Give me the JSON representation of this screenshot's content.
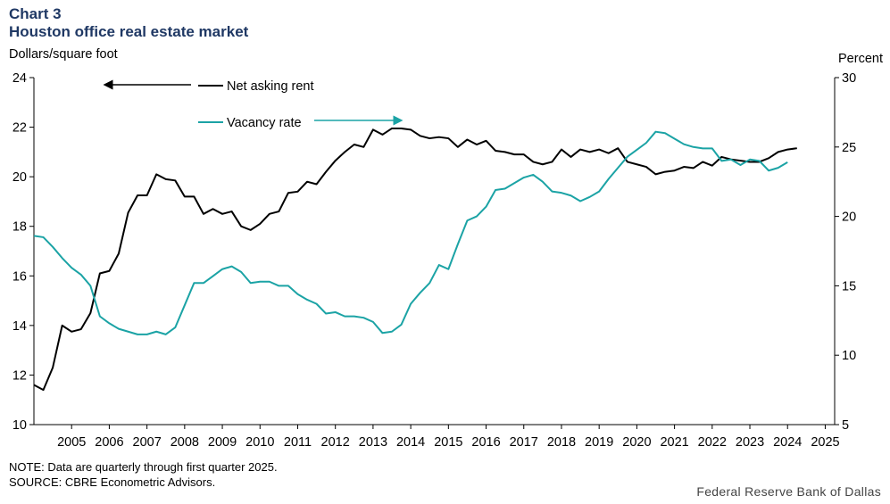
{
  "header": {
    "chart_number": "Chart 3",
    "title": "Houston office real estate market",
    "left_unit": "Dollars/square foot",
    "right_unit": "Percent"
  },
  "footer": {
    "note": "NOTE: Data are quarterly through first quarter 2025.",
    "source": "SOURCE: CBRE Econometric Advisors.",
    "credit": "Federal Reserve Bank of Dallas"
  },
  "colors": {
    "rent": "#000000",
    "vacancy": "#1ba3a5",
    "axis": "#000000"
  },
  "chart_data": {
    "type": "line",
    "title": "Houston office real estate market",
    "x_label_years": [
      "2005",
      "2006",
      "2007",
      "2008",
      "2009",
      "2010",
      "2011",
      "2012",
      "2013",
      "2014",
      "2015",
      "2016",
      "2017",
      "2018",
      "2019",
      "2020",
      "2021",
      "2022",
      "2023",
      "2024",
      "2025"
    ],
    "x_start": 2004.0,
    "x_end": 2025.25,
    "y_left": {
      "label": "Dollars/square foot",
      "range": [
        10,
        24
      ],
      "ticks": [
        "10",
        "12",
        "14",
        "16",
        "18",
        "20",
        "22",
        "24"
      ]
    },
    "y_right": {
      "label": "Percent",
      "range": [
        5,
        30
      ],
      "ticks": [
        "5",
        "10",
        "15",
        "20",
        "25",
        "30"
      ]
    },
    "legend": [
      {
        "name": "Net asking rent",
        "axis": "left",
        "arrow": "left"
      },
      {
        "name": "Vacancy rate",
        "axis": "right",
        "arrow": "right"
      }
    ],
    "series": [
      {
        "name": "Net asking rent",
        "axis": "left",
        "color": "#000000",
        "points": [
          [
            2004.0,
            11.6
          ],
          [
            2004.25,
            11.4
          ],
          [
            2004.5,
            12.3
          ],
          [
            2004.75,
            14.0
          ],
          [
            2005.0,
            13.75
          ],
          [
            2005.25,
            13.85
          ],
          [
            2005.5,
            14.5
          ],
          [
            2005.75,
            16.1
          ],
          [
            2006.0,
            16.2
          ],
          [
            2006.25,
            16.9
          ],
          [
            2006.5,
            18.55
          ],
          [
            2006.75,
            19.25
          ],
          [
            2007.0,
            19.25
          ],
          [
            2007.25,
            20.1
          ],
          [
            2007.5,
            19.9
          ],
          [
            2007.75,
            19.85
          ],
          [
            2008.0,
            19.2
          ],
          [
            2008.25,
            19.2
          ],
          [
            2008.5,
            18.5
          ],
          [
            2008.75,
            18.7
          ],
          [
            2009.0,
            18.5
          ],
          [
            2009.25,
            18.6
          ],
          [
            2009.5,
            18.0
          ],
          [
            2009.75,
            17.85
          ],
          [
            2010.0,
            18.1
          ],
          [
            2010.25,
            18.5
          ],
          [
            2010.5,
            18.6
          ],
          [
            2010.75,
            19.35
          ],
          [
            2011.0,
            19.4
          ],
          [
            2011.25,
            19.8
          ],
          [
            2011.5,
            19.7
          ],
          [
            2011.75,
            20.2
          ],
          [
            2012.0,
            20.65
          ],
          [
            2012.25,
            21.0
          ],
          [
            2012.5,
            21.3
          ],
          [
            2012.75,
            21.2
          ],
          [
            2013.0,
            21.9
          ],
          [
            2013.25,
            21.7
          ],
          [
            2013.5,
            21.95
          ],
          [
            2013.75,
            21.95
          ],
          [
            2014.0,
            21.9
          ],
          [
            2014.25,
            21.65
          ],
          [
            2014.5,
            21.55
          ],
          [
            2014.75,
            21.6
          ],
          [
            2015.0,
            21.55
          ],
          [
            2015.25,
            21.2
          ],
          [
            2015.5,
            21.5
          ],
          [
            2015.75,
            21.3
          ],
          [
            2016.0,
            21.45
          ],
          [
            2016.25,
            21.05
          ],
          [
            2016.5,
            21.0
          ],
          [
            2016.75,
            20.9
          ],
          [
            2017.0,
            20.9
          ],
          [
            2017.25,
            20.6
          ],
          [
            2017.5,
            20.5
          ],
          [
            2017.75,
            20.6
          ],
          [
            2018.0,
            21.1
          ],
          [
            2018.25,
            20.8
          ],
          [
            2018.5,
            21.1
          ],
          [
            2018.75,
            21.0
          ],
          [
            2019.0,
            21.1
          ],
          [
            2019.25,
            20.95
          ],
          [
            2019.5,
            21.15
          ],
          [
            2019.75,
            20.6
          ],
          [
            2020.0,
            20.5
          ],
          [
            2020.25,
            20.4
          ],
          [
            2020.5,
            20.1
          ],
          [
            2020.75,
            20.2
          ],
          [
            2021.0,
            20.25
          ],
          [
            2021.25,
            20.4
          ],
          [
            2021.5,
            20.35
          ],
          [
            2021.75,
            20.6
          ],
          [
            2022.0,
            20.45
          ],
          [
            2022.25,
            20.8
          ],
          [
            2022.5,
            20.7
          ],
          [
            2022.75,
            20.65
          ],
          [
            2023.0,
            20.6
          ],
          [
            2023.25,
            20.6
          ],
          [
            2023.5,
            20.75
          ],
          [
            2023.75,
            21.0
          ],
          [
            2024.0,
            21.1
          ],
          [
            2024.25,
            21.15
          ]
        ]
      },
      {
        "name": "Vacancy rate",
        "axis": "right",
        "color": "#1ba3a5",
        "points": [
          [
            2004.0,
            18.6
          ],
          [
            2004.25,
            18.5
          ],
          [
            2004.5,
            17.8
          ],
          [
            2004.75,
            17.0
          ],
          [
            2005.0,
            16.3
          ],
          [
            2005.25,
            15.8
          ],
          [
            2005.5,
            15.0
          ],
          [
            2005.75,
            12.8
          ],
          [
            2006.0,
            12.3
          ],
          [
            2006.25,
            11.9
          ],
          [
            2006.5,
            11.7
          ],
          [
            2006.75,
            11.5
          ],
          [
            2007.0,
            11.5
          ],
          [
            2007.25,
            11.7
          ],
          [
            2007.5,
            11.5
          ],
          [
            2007.75,
            12.0
          ],
          [
            2008.0,
            13.6
          ],
          [
            2008.25,
            15.2
          ],
          [
            2008.5,
            15.2
          ],
          [
            2008.75,
            15.7
          ],
          [
            2009.0,
            16.2
          ],
          [
            2009.25,
            16.4
          ],
          [
            2009.5,
            16.0
          ],
          [
            2009.75,
            15.2
          ],
          [
            2010.0,
            15.3
          ],
          [
            2010.25,
            15.3
          ],
          [
            2010.5,
            15.0
          ],
          [
            2010.75,
            15.0
          ],
          [
            2011.0,
            14.4
          ],
          [
            2011.25,
            14.0
          ],
          [
            2011.5,
            13.7
          ],
          [
            2011.75,
            13.0
          ],
          [
            2012.0,
            13.1
          ],
          [
            2012.25,
            12.8
          ],
          [
            2012.5,
            12.8
          ],
          [
            2012.75,
            12.7
          ],
          [
            2013.0,
            12.4
          ],
          [
            2013.25,
            11.6
          ],
          [
            2013.5,
            11.7
          ],
          [
            2013.75,
            12.2
          ],
          [
            2014.0,
            13.7
          ],
          [
            2014.25,
            14.5
          ],
          [
            2014.5,
            15.2
          ],
          [
            2014.75,
            16.5
          ],
          [
            2015.0,
            16.2
          ],
          [
            2015.25,
            18.0
          ],
          [
            2015.5,
            19.7
          ],
          [
            2015.75,
            20.0
          ],
          [
            2016.0,
            20.7
          ],
          [
            2016.25,
            21.9
          ],
          [
            2016.5,
            22.0
          ],
          [
            2016.75,
            22.4
          ],
          [
            2017.0,
            22.8
          ],
          [
            2017.25,
            23.0
          ],
          [
            2017.5,
            22.5
          ],
          [
            2017.75,
            21.8
          ],
          [
            2018.0,
            21.7
          ],
          [
            2018.25,
            21.5
          ],
          [
            2018.5,
            21.1
          ],
          [
            2018.75,
            21.4
          ],
          [
            2019.0,
            21.8
          ],
          [
            2019.25,
            22.7
          ],
          [
            2019.5,
            23.5
          ],
          [
            2019.75,
            24.3
          ],
          [
            2020.0,
            24.8
          ],
          [
            2020.25,
            25.3
          ],
          [
            2020.5,
            26.1
          ],
          [
            2020.75,
            26.0
          ],
          [
            2021.0,
            25.6
          ],
          [
            2021.25,
            25.2
          ],
          [
            2021.5,
            25.0
          ],
          [
            2021.75,
            24.9
          ],
          [
            2022.0,
            24.9
          ],
          [
            2022.25,
            24.0
          ],
          [
            2022.5,
            24.1
          ],
          [
            2022.75,
            23.7
          ],
          [
            2023.0,
            24.1
          ],
          [
            2023.25,
            24.0
          ],
          [
            2023.5,
            23.3
          ],
          [
            2023.75,
            23.5
          ],
          [
            2024.0,
            23.9
          ]
        ]
      }
    ]
  }
}
